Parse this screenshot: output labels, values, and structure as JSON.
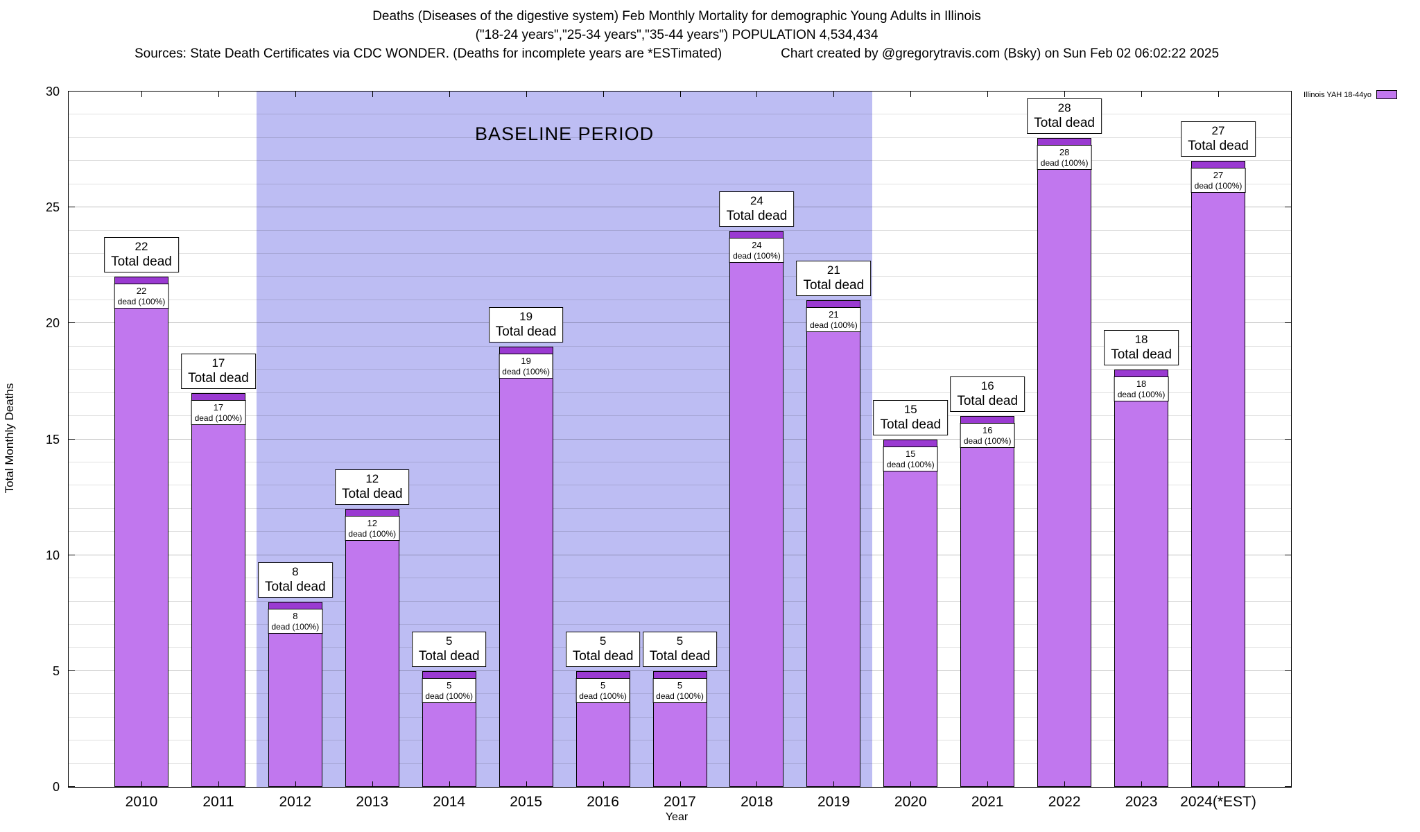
{
  "header": {
    "title": "Deaths (Diseases of the digestive system) Feb Monthly Mortality for demographic Young Adults in Illinois",
    "subtitle": "(\"18-24 years\",\"25-34 years\",\"35-44 years\") POPULATION 4,534,434",
    "sources": "Sources: State Death Certificates via CDC WONDER. (Deaths for incomplete years are *ESTimated)",
    "credit": "Chart created by @gregorytravis.com (Bsky) on Sun Feb 02 06:02:22 2025"
  },
  "legend": {
    "label": "Illinois YAH 18-44yo",
    "swatch_color": "#c177ee"
  },
  "chart_data": {
    "type": "bar",
    "title": "Deaths (Diseases of the digestive system) Feb Monthly Mortality for demographic Young Adults in Illinois",
    "xlabel": "Year",
    "ylabel": "Total Monthly Deaths",
    "ylim": [
      0,
      30
    ],
    "yticks": [
      0,
      5,
      10,
      15,
      20,
      25,
      30
    ],
    "categories": [
      "2010",
      "2011",
      "2012",
      "2013",
      "2014",
      "2015",
      "2016",
      "2017",
      "2018",
      "2019",
      "2020",
      "2021",
      "2022",
      "2023",
      "2024(*EST)"
    ],
    "values": [
      22,
      17,
      8,
      12,
      5,
      19,
      5,
      5,
      24,
      21,
      15,
      16,
      28,
      18,
      27
    ],
    "bar_total_label": "Total dead",
    "bar_value_label": "dead (100%)",
    "bar_color": "#c177ee",
    "bar_cap_color": "#9a3ad1",
    "baseline_region": {
      "label": "BASELINE PERIOD",
      "from_category": "2012",
      "to_category": "2019",
      "color": "#bdbdf3"
    },
    "grid": "horizontal minor gridlines every 1 unit",
    "legend_position": "top-right-outside"
  }
}
